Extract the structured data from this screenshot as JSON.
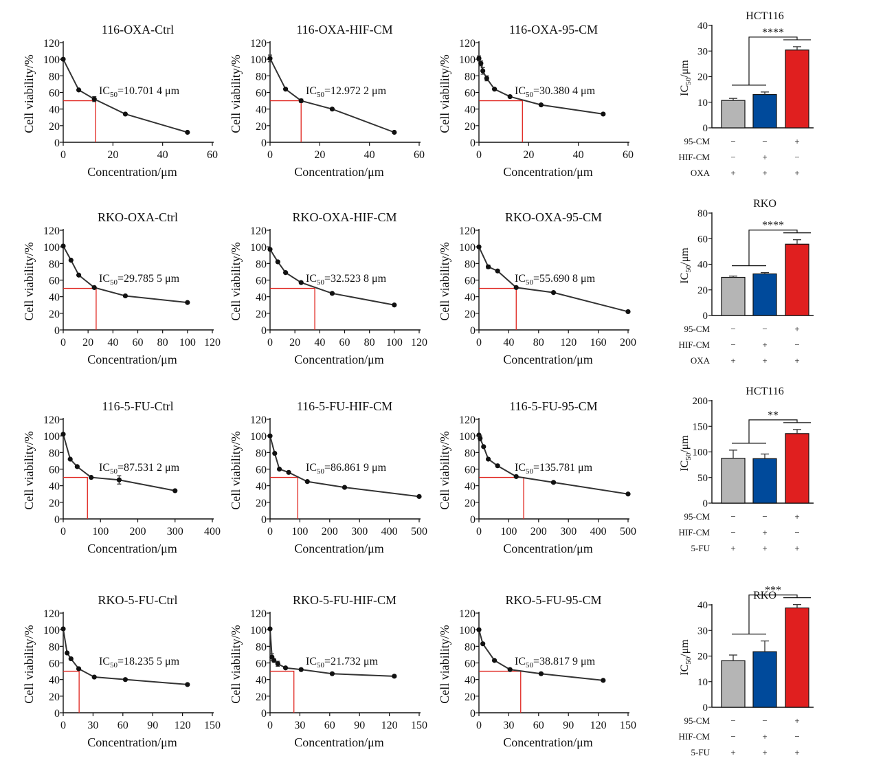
{
  "chart_data": {
    "type": "line",
    "line_charts": [
      {
        "title": "116-OXA-Ctrl",
        "xlabel": "Concentration/μm",
        "ylabel": "Cell viability/%",
        "xlim": [
          0,
          60
        ],
        "xticks": [
          0,
          20,
          40,
          60
        ],
        "ylim": [
          0,
          120
        ],
        "yticks": [
          0,
          20,
          40,
          60,
          80,
          100,
          120
        ],
        "x": [
          0,
          6.25,
          12.5,
          25,
          50
        ],
        "y": [
          100,
          63,
          52,
          34,
          12
        ],
        "err": [
          0,
          0,
          3,
          0,
          0
        ],
        "ic50_label": "IC50=10.701 4 μm",
        "ic50_sub": "50",
        "ic50_value": "=10.701 4 μm",
        "ic50_x": 13
      },
      {
        "title": "116-OXA-HIF-CM",
        "xlabel": "Concentration/μm",
        "ylabel": "Cell viability/%",
        "xlim": [
          0,
          60
        ],
        "xticks": [
          0,
          20,
          40,
          60
        ],
        "ylim": [
          0,
          120
        ],
        "yticks": [
          0,
          20,
          40,
          60,
          80,
          100,
          120
        ],
        "x": [
          0,
          6.25,
          12.5,
          25,
          50
        ],
        "y": [
          101,
          64,
          50,
          40,
          12
        ],
        "err": [
          4,
          0,
          2,
          0,
          0
        ],
        "ic50_label": "IC50=12.972 2 μm",
        "ic50_sub": "50",
        "ic50_value": "=12.972 2 μm",
        "ic50_x": 12.5
      },
      {
        "title": "116-OXA-95-CM",
        "xlabel": "Concentration/μm",
        "ylabel": "Cell viability/%",
        "xlim": [
          0,
          60
        ],
        "xticks": [
          0,
          20,
          40,
          60
        ],
        "ylim": [
          0,
          120
        ],
        "yticks": [
          0,
          20,
          40,
          60,
          80,
          100,
          120
        ],
        "x": [
          0,
          0.78,
          1.56,
          3.13,
          6.25,
          12.5,
          25,
          50
        ],
        "y": [
          101,
          95,
          86,
          77,
          64,
          55,
          45,
          34
        ],
        "err": [
          3,
          3,
          4,
          3,
          0,
          0,
          0,
          0
        ],
        "ic50_label": "IC50=30.380 4 μm",
        "ic50_sub": "50",
        "ic50_value": "=30.380 4 μm",
        "ic50_x": 17.5
      },
      {
        "title": "RKO-OXA-Ctrl",
        "xlabel": "Concentration/μm",
        "ylabel": "Cell viability/%",
        "xlim": [
          0,
          120
        ],
        "xticks": [
          0,
          20,
          40,
          60,
          80,
          100,
          120
        ],
        "ylim": [
          0,
          120
        ],
        "yticks": [
          0,
          20,
          40,
          60,
          80,
          100,
          120
        ],
        "x": [
          0,
          6.25,
          12.5,
          25,
          50,
          100
        ],
        "y": [
          101,
          84,
          66,
          51,
          41,
          33
        ],
        "err": [
          0,
          0,
          0,
          0,
          0,
          0
        ],
        "ic50_label": "IC50=29.785 5 μm",
        "ic50_sub": "50",
        "ic50_value": "=29.785 5 μm",
        "ic50_x": 26.5
      },
      {
        "title": "RKO-OXA-HIF-CM",
        "xlabel": "Concentration/μm",
        "ylabel": "Cell viability/%",
        "xlim": [
          0,
          120
        ],
        "xticks": [
          0,
          20,
          40,
          60,
          80,
          100,
          120
        ],
        "ylim": [
          0,
          120
        ],
        "yticks": [
          0,
          20,
          40,
          60,
          80,
          100,
          120
        ],
        "x": [
          0,
          6.25,
          12.5,
          25,
          50,
          100
        ],
        "y": [
          97,
          82,
          69,
          57,
          44,
          30
        ],
        "err": [
          0,
          0,
          0,
          0,
          0,
          0
        ],
        "ic50_label": "IC50=32.523 8 μm",
        "ic50_sub": "50",
        "ic50_value": "=32.523 8 μm",
        "ic50_x": 36
      },
      {
        "title": "RKO-OXA-95-CM",
        "xlabel": "Concentration/μm",
        "ylabel": "Cell viability/%",
        "xlim": [
          0,
          200
        ],
        "xticks": [
          0,
          40,
          80,
          120,
          160,
          200
        ],
        "ylim": [
          0,
          120
        ],
        "yticks": [
          0,
          20,
          40,
          60,
          80,
          100,
          120
        ],
        "x": [
          0,
          12.5,
          25,
          50,
          100,
          200
        ],
        "y": [
          100,
          76,
          71,
          51,
          45,
          22
        ],
        "err": [
          0,
          2,
          0,
          0,
          0,
          0
        ],
        "ic50_label": "IC50=55.690 8 μm",
        "ic50_sub": "50",
        "ic50_value": "=55.690 8 μm",
        "ic50_x": 50
      },
      {
        "title": "116-5-FU-Ctrl",
        "xlabel": "Concentration/μm",
        "ylabel": "Cell viability/%",
        "xlim": [
          0,
          400
        ],
        "xticks": [
          0,
          100,
          200,
          300,
          400
        ],
        "ylim": [
          0,
          120
        ],
        "yticks": [
          0,
          20,
          40,
          60,
          80,
          100,
          120
        ],
        "x": [
          0,
          18.75,
          37.5,
          75,
          150,
          300
        ],
        "y": [
          102,
          72,
          63,
          50,
          47,
          34
        ],
        "err": [
          0,
          0,
          0,
          0,
          5,
          0
        ],
        "ic50_label": "IC50=87.531 2 μm",
        "ic50_sub": "50",
        "ic50_value": "=87.531 2 μm",
        "ic50_x": 65
      },
      {
        "title": "116-5-FU-HIF-CM",
        "xlabel": "Concentration/μm",
        "ylabel": "Cell viability/%",
        "xlim": [
          0,
          500
        ],
        "xticks": [
          0,
          100,
          200,
          300,
          400,
          500
        ],
        "ylim": [
          0,
          120
        ],
        "yticks": [
          0,
          20,
          40,
          60,
          80,
          100,
          120
        ],
        "x": [
          0,
          15.6,
          31.25,
          62.5,
          125,
          250,
          500
        ],
        "y": [
          100,
          79,
          60,
          56,
          45,
          38,
          27
        ],
        "err": [
          0,
          0,
          0,
          0,
          0,
          0,
          0
        ],
        "ic50_label": "IC50=86.861 9 μm",
        "ic50_sub": "50",
        "ic50_value": "=86.861 9 μm",
        "ic50_x": 93
      },
      {
        "title": "116-5-FU-95-CM",
        "xlabel": "Concentration/μm",
        "ylabel": "Cell viability/%",
        "xlim": [
          0,
          500
        ],
        "xticks": [
          0,
          100,
          200,
          300,
          400,
          500
        ],
        "ylim": [
          0,
          120
        ],
        "yticks": [
          0,
          20,
          40,
          60,
          80,
          100,
          120
        ],
        "x": [
          0,
          3.9,
          15.6,
          31.25,
          62.5,
          125,
          250,
          500
        ],
        "y": [
          101,
          97,
          87,
          72,
          64,
          51,
          44,
          30
        ],
        "err": [
          0,
          3,
          0,
          0,
          0,
          0,
          0,
          0
        ],
        "ic50_label": "IC50=135.781 μm",
        "ic50_sub": "50",
        "ic50_value": "=135.781 μm",
        "ic50_x": 150
      },
      {
        "title": "RKO-5-FU-Ctrl",
        "xlabel": "Concentration/μm",
        "ylabel": "Cell viability/%",
        "xlim": [
          0,
          150
        ],
        "xticks": [
          0,
          30,
          60,
          90,
          120,
          150
        ],
        "ylim": [
          0,
          120
        ],
        "yticks": [
          0,
          20,
          40,
          60,
          80,
          100,
          120
        ],
        "x": [
          0,
          3.9,
          7.8,
          15.6,
          31.25,
          62.5,
          125
        ],
        "y": [
          101,
          72,
          65,
          53,
          43,
          40,
          34
        ],
        "err": [
          0,
          0,
          0,
          0,
          0,
          0,
          0
        ],
        "ic50_label": "IC50=18.235 5 μm",
        "ic50_sub": "50",
        "ic50_value": "=18.235 5 μm",
        "ic50_x": 16
      },
      {
        "title": "RKO-5-FU-HIF-CM",
        "xlabel": "Concentration/μm",
        "ylabel": "Cell viability/%",
        "xlim": [
          0,
          150
        ],
        "xticks": [
          0,
          30,
          60,
          90,
          120,
          150
        ],
        "ylim": [
          0,
          120
        ],
        "yticks": [
          0,
          20,
          40,
          60,
          80,
          100,
          120
        ],
        "x": [
          0,
          1.95,
          3.9,
          7.8,
          15.6,
          31.25,
          62.5,
          125
        ],
        "y": [
          101,
          67,
          63,
          59,
          54,
          52,
          47,
          44
        ],
        "err": [
          0,
          4,
          2,
          3,
          0,
          0,
          0,
          0
        ],
        "ic50_label": "IC50=21.732 μm",
        "ic50_sub": "50",
        "ic50_value": "=21.732 μm",
        "ic50_x": 24
      },
      {
        "title": "RKO-5-FU-95-CM",
        "xlabel": "Concentration/μm",
        "ylabel": "Cell viability/%",
        "xlim": [
          0,
          150
        ],
        "xticks": [
          0,
          30,
          60,
          90,
          120,
          150
        ],
        "ylim": [
          0,
          120
        ],
        "yticks": [
          0,
          20,
          40,
          60,
          80,
          100,
          120
        ],
        "x": [
          0,
          3.9,
          15.6,
          31.25,
          62.5,
          125
        ],
        "y": [
          100,
          83,
          63,
          52,
          47,
          39
        ],
        "err": [
          0,
          0,
          0,
          0,
          0,
          0
        ],
        "ic50_label": "IC50=38.817 9 μm",
        "ic50_sub": "50",
        "ic50_value": "=38.817 9 μm",
        "ic50_x": 42
      }
    ],
    "bar_charts": [
      {
        "type": "bar",
        "title": "HCT116",
        "ylabel": "IC50/μm",
        "ylabel_main": "IC",
        "ylabel_sub": "50",
        "ylabel_tail": "/μm",
        "ylim": [
          0,
          40
        ],
        "yticks": [
          0,
          10,
          20,
          30,
          40
        ],
        "values": [
          10.7,
          13.0,
          30.4
        ],
        "errors": [
          0.8,
          1.0,
          1.3
        ],
        "colors": [
          "#b5b5b5",
          "#004a9b",
          "#e01f1f"
        ],
        "significance": "****",
        "rows": [
          {
            "label": "95-CM",
            "signs": [
              "−",
              "−",
              "+"
            ]
          },
          {
            "label": "HIF-CM",
            "signs": [
              "−",
              "+",
              "−"
            ]
          },
          {
            "label": "OXA",
            "signs": [
              "+",
              "+",
              "+"
            ]
          }
        ]
      },
      {
        "type": "bar",
        "title": "RKO",
        "ylabel": "IC50/μm",
        "ylabel_main": "IC",
        "ylabel_sub": "50",
        "ylabel_tail": "/μm",
        "ylim": [
          0,
          80
        ],
        "yticks": [
          0,
          20,
          40,
          60,
          80
        ],
        "values": [
          29.8,
          32.5,
          55.7
        ],
        "errors": [
          1.0,
          1.0,
          3.5
        ],
        "colors": [
          "#b5b5b5",
          "#004a9b",
          "#e01f1f"
        ],
        "significance": "****",
        "rows": [
          {
            "label": "95-CM",
            "signs": [
              "−",
              "−",
              "+"
            ]
          },
          {
            "label": "HIF-CM",
            "signs": [
              "−",
              "+",
              "−"
            ]
          },
          {
            "label": "OXA",
            "signs": [
              "+",
              "+",
              "+"
            ]
          }
        ]
      },
      {
        "type": "bar",
        "title": "HCT116",
        "ylabel": "IC50/μm",
        "ylabel_main": "IC",
        "ylabel_sub": "50",
        "ylabel_tail": "/μm",
        "ylim": [
          0,
          200
        ],
        "yticks": [
          0,
          50,
          100,
          150,
          200
        ],
        "values": [
          87.5,
          86.9,
          135.8
        ],
        "errors": [
          16,
          9,
          8
        ],
        "colors": [
          "#b5b5b5",
          "#004a9b",
          "#e01f1f"
        ],
        "significance": "**",
        "rows": [
          {
            "label": "95-CM",
            "signs": [
              "−",
              "−",
              "+"
            ]
          },
          {
            "label": "HIF-CM",
            "signs": [
              "−",
              "+",
              "−"
            ]
          },
          {
            "label": "5-FU",
            "signs": [
              "+",
              "+",
              "+"
            ]
          }
        ]
      },
      {
        "type": "bar",
        "title": "RKO",
        "ylabel": "IC50/μm",
        "ylabel_main": "IC",
        "ylabel_sub": "50",
        "ylabel_tail": "/μm",
        "ylim": [
          0,
          40
        ],
        "yticks": [
          0,
          10,
          20,
          30,
          40
        ],
        "values": [
          18.2,
          21.7,
          38.8
        ],
        "errors": [
          2.2,
          4.2,
          1.3
        ],
        "colors": [
          "#b5b5b5",
          "#004a9b",
          "#e01f1f"
        ],
        "significance": "***",
        "rows": [
          {
            "label": "95-CM",
            "signs": [
              "−",
              "−",
              "+"
            ]
          },
          {
            "label": "HIF-CM",
            "signs": [
              "−",
              "+",
              "−"
            ]
          },
          {
            "label": "5-FU",
            "signs": [
              "+",
              "+",
              "+"
            ]
          }
        ]
      }
    ]
  }
}
